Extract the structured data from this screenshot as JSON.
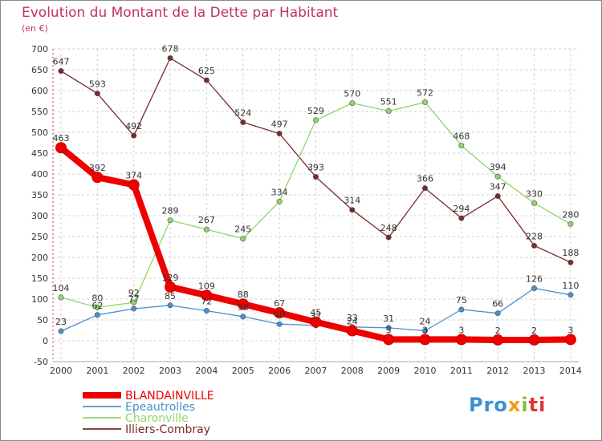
{
  "chart_data": {
    "type": "line",
    "title": "Evolution du Montant de la Dette par Habitant",
    "subtitle": "(en €)",
    "xlabel": "",
    "ylabel": "",
    "ylim": [
      -50,
      700
    ],
    "yticks": [
      -50,
      0,
      50,
      100,
      150,
      200,
      250,
      300,
      350,
      400,
      450,
      500,
      550,
      600,
      650,
      700
    ],
    "x": [
      "2000",
      "2001",
      "2002",
      "2003",
      "2004",
      "2005",
      "2006",
      "2007",
      "2008",
      "2009",
      "2010",
      "2011",
      "2012",
      "2013",
      "2014"
    ],
    "grid": true,
    "legend_position": "bottom-left",
    "series": [
      {
        "name": "Illiers-Combray",
        "color": "#7a2a2a",
        "values": [
          647,
          593,
          492,
          678,
          625,
          524,
          497,
          393,
          314,
          248,
          366,
          294,
          347,
          228,
          188
        ]
      },
      {
        "name": "Charonville",
        "color": "#8ed66a",
        "values": [
          104,
          80,
          92,
          289,
          267,
          245,
          334,
          529,
          570,
          551,
          572,
          468,
          394,
          330,
          280
        ]
      },
      {
        "name": "Epeautrolles",
        "color": "#4a90cf",
        "values": [
          23,
          62,
          77,
          85,
          72,
          58,
          40,
          37,
          33,
          31,
          24,
          75,
          66,
          126,
          110
        ]
      },
      {
        "name": "BLANDAINVILLE",
        "color": "#ee0000",
        "values": [
          463,
          392,
          374,
          129,
          109,
          88,
          67,
          45,
          24,
          3,
          3,
          3,
          2,
          2,
          3
        ]
      }
    ],
    "data_labels": {
      "BLANDAINVILLE": [
        "463",
        "392",
        "374",
        "129",
        "109",
        "88",
        "67",
        "45",
        "24",
        "3",
        "3",
        "3",
        "2",
        "2",
        "3"
      ],
      "Epeautrolles": [
        "23",
        "62",
        "77",
        "85",
        "72",
        "58",
        "40",
        "37",
        "33",
        "31",
        "24",
        "75",
        "66",
        "126",
        "110"
      ],
      "Charonville": [
        "104",
        "80",
        "92",
        "289",
        "267",
        "245",
        "334",
        "529",
        "570",
        "551",
        "572",
        "468",
        "394",
        "330",
        "280"
      ],
      "Illiers-Combray": [
        "647",
        "593",
        "492",
        "678",
        "625",
        "524",
        "497",
        "393",
        "314",
        "248",
        "366",
        "294",
        "347",
        "228",
        "188"
      ]
    },
    "legend": [
      "BLANDAINVILLE",
      "Epeautrolles",
      "Charonville",
      "Illiers-Combray"
    ]
  },
  "logo": {
    "part1": "Pro",
    "part2": "x",
    "part3": "i",
    "part4": "ti"
  }
}
